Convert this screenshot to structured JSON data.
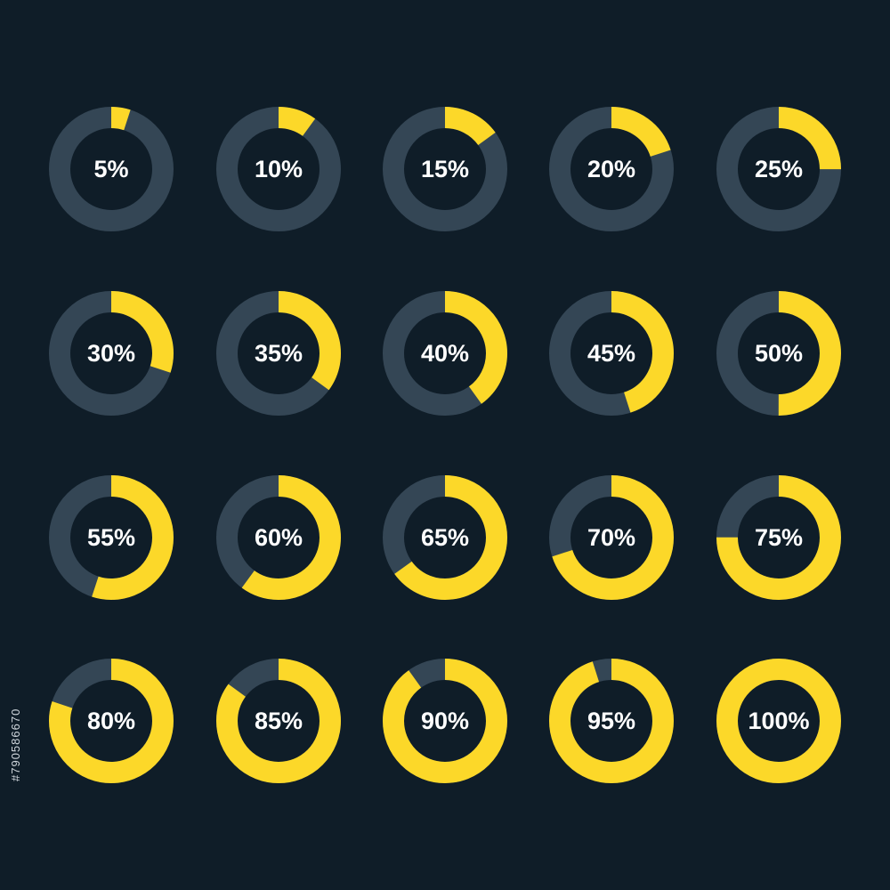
{
  "colors": {
    "background": "#0f1d28",
    "track": "#344655",
    "fill": "#fcd829",
    "label": "#ffffff"
  },
  "rings": [
    {
      "label": "5%",
      "value": 0.05
    },
    {
      "label": "10%",
      "value": 0.1
    },
    {
      "label": "15%",
      "value": 0.15
    },
    {
      "label": "20%",
      "value": 0.2
    },
    {
      "label": "25%",
      "value": 0.25
    },
    {
      "label": "30%",
      "value": 0.3
    },
    {
      "label": "35%",
      "value": 0.35
    },
    {
      "label": "40%",
      "value": 0.4
    },
    {
      "label": "45%",
      "value": 0.45
    },
    {
      "label": "50%",
      "value": 0.5
    },
    {
      "label": "55%",
      "value": 0.55
    },
    {
      "label": "60%",
      "value": 0.6
    },
    {
      "label": "65%",
      "value": 0.65
    },
    {
      "label": "70%",
      "value": 0.7
    },
    {
      "label": "75%",
      "value": 0.75
    },
    {
      "label": "80%",
      "value": 0.8
    },
    {
      "label": "85%",
      "value": 0.85
    },
    {
      "label": "90%",
      "value": 0.9
    },
    {
      "label": "95%",
      "value": 0.95
    },
    {
      "label": "100%",
      "value": 1.0
    }
  ],
  "stock_id": "#790586670"
}
